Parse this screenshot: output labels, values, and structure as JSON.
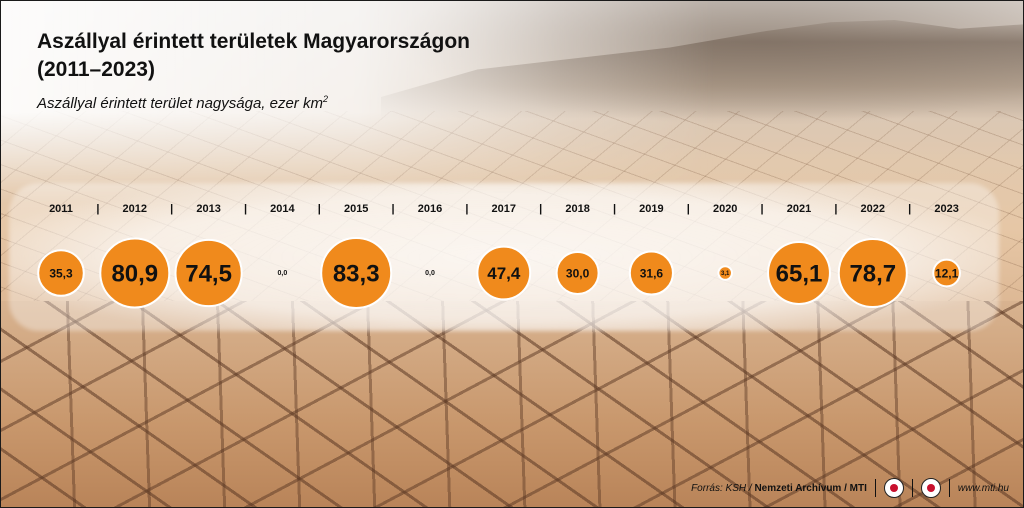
{
  "header": {
    "title_line1": "Aszállyal érintett területek Magyarországon",
    "title_line2": "(2011–2023)",
    "subtitle_text": "Aszállyal érintett terület nagysága, ezer km",
    "subtitle_sup": "2"
  },
  "chart_data": {
    "type": "bubble",
    "title": "Aszállyal érintett területek Magyarországon (2011–2023)",
    "subtitle": "Aszállyal érintett terület nagysága, ezer km²",
    "categories": [
      "2011",
      "2012",
      "2013",
      "2014",
      "2015",
      "2016",
      "2017",
      "2018",
      "2019",
      "2020",
      "2021",
      "2022",
      "2023"
    ],
    "values": [
      35.3,
      80.9,
      74.5,
      0.0,
      83.3,
      0.0,
      47.4,
      30.0,
      31.6,
      3.1,
      65.1,
      78.7,
      12.1
    ],
    "labels": [
      "35,3",
      "80,9",
      "74,5",
      "0,0",
      "83,3",
      "0,0",
      "47,4",
      "30,0",
      "31,6",
      "3,1",
      "65,1",
      "78,7",
      "12,1"
    ],
    "bubble_color": "#f08a1c",
    "separator": "|"
  },
  "footer": {
    "source_prefix": "Forrás: KSH / ",
    "source_bold": "Nemzeti Archívum / MTI",
    "logo1": "mti-logo-icon",
    "logo2": "mti-round-logo-icon",
    "url": "www.mti.hu"
  }
}
